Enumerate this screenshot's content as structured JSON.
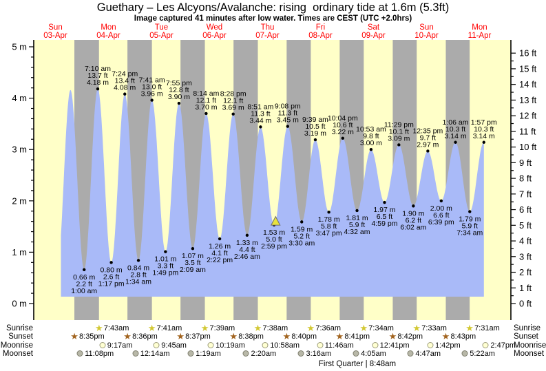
{
  "title": "Guethary – Les Alcyons/Avalanche: rising  ordinary tide at 1.6m (5.3ft)",
  "subtitle": "Image captured 41 minutes after low water. Times are CEST (UTC +2.0hrs)",
  "colors": {
    "day_band": "#ffffc8",
    "night_band": "#ababab",
    "tide_fill": "#a9baf8",
    "day_label": "#ff0000",
    "axis": "#000000",
    "dot": "#000000",
    "marker_fill": "#e8e23f",
    "marker_stroke": "#6e6e6e",
    "sunrise_star": "#d2c832",
    "sunset_star": "#a2641f",
    "moonrise_fill": "#ffffd2",
    "moonrise_border": "#9a9a7a",
    "moonset_fill": "#b8b8a8",
    "moonset_border": "#7e7e6e"
  },
  "chart_data": {
    "type": "area",
    "title": "Guethary – Les Alcyons/Avalanche: rising ordinary tide at 1.6m (5.3ft)",
    "subtitle": "Image captured 41 minutes after low water. Times are CEST (UTC +2.0hrs)",
    "days": [
      {
        "name": "Sun",
        "date": "03-Apr"
      },
      {
        "name": "Mon",
        "date": "04-Apr"
      },
      {
        "name": "Tue",
        "date": "05-Apr"
      },
      {
        "name": "Wed",
        "date": "06-Apr"
      },
      {
        "name": "Thu",
        "date": "07-Apr"
      },
      {
        "name": "Fri",
        "date": "08-Apr"
      },
      {
        "name": "Sat",
        "date": "09-Apr"
      },
      {
        "name": "Sun",
        "date": "10-Apr"
      },
      {
        "name": "Mon",
        "date": "11-Apr"
      }
    ],
    "y_axis_left": {
      "unit": "m",
      "min": 0,
      "max": 5,
      "major_step": 1,
      "minor_step": 0.2
    },
    "y_axis_right": {
      "unit": "ft",
      "min": 0,
      "max": 16,
      "major_step": 1,
      "minor_step": 0.5
    },
    "tide_events": [
      {
        "type": "low",
        "labeled": false,
        "t": 12.6,
        "m": 0.55
      },
      {
        "type": "high",
        "labeled": false,
        "t": 18.8,
        "m": 4.16
      },
      {
        "type": "low",
        "labeled": true,
        "t": 25.0,
        "m": 0.66,
        "ft": 2.2,
        "time": "1:00 am"
      },
      {
        "type": "high",
        "labeled": true,
        "t": 31.17,
        "m": 4.18,
        "ft": 13.7,
        "time": "7:10 am"
      },
      {
        "type": "low",
        "labeled": true,
        "t": 37.28,
        "m": 0.8,
        "ft": 2.6,
        "time": "1:17 pm"
      },
      {
        "type": "high",
        "labeled": true,
        "t": 43.4,
        "m": 4.08,
        "ft": 13.4,
        "time": "7:24 pm"
      },
      {
        "type": "low",
        "labeled": true,
        "t": 49.57,
        "m": 0.84,
        "ft": 2.8,
        "time": "1:34 am"
      },
      {
        "type": "high",
        "labeled": true,
        "t": 55.68,
        "m": 3.96,
        "ft": 13.0,
        "time": "7:41 am"
      },
      {
        "type": "low",
        "labeled": true,
        "t": 61.82,
        "m": 1.01,
        "ft": 3.3,
        "time": "1:49 pm"
      },
      {
        "type": "high",
        "labeled": true,
        "t": 67.92,
        "m": 3.9,
        "ft": 12.8,
        "time": "7:55 pm"
      },
      {
        "type": "low",
        "labeled": true,
        "t": 74.15,
        "m": 1.07,
        "ft": 3.5,
        "time": "2:09 am"
      },
      {
        "type": "high",
        "labeled": true,
        "t": 80.23,
        "m": 3.7,
        "ft": 12.1,
        "time": "8:14 am"
      },
      {
        "type": "low",
        "labeled": true,
        "t": 86.37,
        "m": 1.26,
        "ft": 4.1,
        "time": "2:22 pm"
      },
      {
        "type": "high",
        "labeled": true,
        "t": 92.47,
        "m": 3.69,
        "ft": 12.1,
        "time": "8:28 pm"
      },
      {
        "type": "low",
        "labeled": true,
        "t": 98.77,
        "m": 1.33,
        "ft": 4.4,
        "time": "2:46 am"
      },
      {
        "type": "high",
        "labeled": true,
        "t": 104.85,
        "m": 3.44,
        "ft": 11.3,
        "time": "8:51 am"
      },
      {
        "type": "low",
        "labeled": true,
        "t": 110.98,
        "m": 1.53,
        "ft": 5.0,
        "time": "2:59 pm",
        "current": true
      },
      {
        "type": "high",
        "labeled": true,
        "t": 117.13,
        "m": 3.45,
        "ft": 11.3,
        "time": "9:08 pm"
      },
      {
        "type": "low",
        "labeled": true,
        "t": 123.5,
        "m": 1.59,
        "ft": 5.2,
        "time": "3:30 am"
      },
      {
        "type": "high",
        "labeled": true,
        "t": 129.65,
        "m": 3.19,
        "ft": 10.5,
        "time": "9:39 am"
      },
      {
        "type": "low",
        "labeled": true,
        "t": 135.78,
        "m": 1.78,
        "ft": 5.8,
        "time": "3:47 pm"
      },
      {
        "type": "high",
        "labeled": true,
        "t": 142.07,
        "m": 3.22,
        "ft": 10.6,
        "time": "10:04 pm"
      },
      {
        "type": "low",
        "labeled": true,
        "t": 148.53,
        "m": 1.81,
        "ft": 5.9,
        "time": "4:32 am"
      },
      {
        "type": "high",
        "labeled": true,
        "t": 154.88,
        "m": 3.0,
        "ft": 9.8,
        "time": "10:53 am"
      },
      {
        "type": "low",
        "labeled": true,
        "t": 160.98,
        "m": 1.97,
        "ft": 6.5,
        "time": "4:59 pm"
      },
      {
        "type": "high",
        "labeled": true,
        "t": 167.48,
        "m": 3.09,
        "ft": 10.1,
        "time": "11:29 pm"
      },
      {
        "type": "low",
        "labeled": true,
        "t": 174.03,
        "m": 1.9,
        "ft": 6.2,
        "time": "6:02 am"
      },
      {
        "type": "high",
        "labeled": true,
        "t": 180.58,
        "m": 2.97,
        "ft": 9.7,
        "time": "12:35 pm"
      },
      {
        "type": "low",
        "labeled": true,
        "t": 186.65,
        "m": 2.0,
        "ft": 6.6,
        "time": "6:39 pm"
      },
      {
        "type": "high",
        "labeled": true,
        "t": 193.1,
        "m": 3.14,
        "ft": 10.3,
        "time": "1:06 am"
      },
      {
        "type": "low",
        "labeled": true,
        "t": 199.57,
        "m": 1.79,
        "ft": 5.9,
        "time": "7:34 am"
      },
      {
        "type": "high",
        "labeled": true,
        "t": 205.95,
        "m": 3.14,
        "ft": 10.3,
        "time": "1:57 pm"
      }
    ],
    "current_marker": {
      "t": 111.67,
      "height_m": 1.6,
      "shape": "yellow-triangle"
    }
  },
  "astro": {
    "rows": [
      {
        "key": "sunrise",
        "label": "Sunrise",
        "icon": "sunrise-star-icon",
        "events": [
          {
            "time": "7:43am",
            "t": 31.72
          },
          {
            "time": "7:41am",
            "t": 55.68
          },
          {
            "time": "7:39am",
            "t": 79.65
          },
          {
            "time": "7:38am",
            "t": 103.63
          },
          {
            "time": "7:36am",
            "t": 127.6
          },
          {
            "time": "7:34am",
            "t": 151.57
          },
          {
            "time": "7:33am",
            "t": 175.55
          },
          {
            "time": "7:31am",
            "t": 199.52
          }
        ]
      },
      {
        "key": "sunset",
        "label": "Sunset",
        "icon": "sunset-star-icon",
        "events": [
          {
            "time": "8:35pm",
            "t": 20.58
          },
          {
            "time": "8:36pm",
            "t": 44.6
          },
          {
            "time": "8:37pm",
            "t": 68.62
          },
          {
            "time": "8:38pm",
            "t": 92.63
          },
          {
            "time": "8:40pm",
            "t": 116.67
          },
          {
            "time": "8:41pm",
            "t": 140.68
          },
          {
            "time": "8:42pm",
            "t": 164.7
          },
          {
            "time": "8:43pm",
            "t": 188.72
          }
        ]
      },
      {
        "key": "moonrise",
        "label": "Moonrise",
        "icon": "moonrise-icon",
        "events": [
          {
            "time": "9:17am",
            "t": 33.28
          },
          {
            "time": "9:45am",
            "t": 57.75
          },
          {
            "time": "10:19am",
            "t": 82.32
          },
          {
            "time": "10:58am",
            "t": 106.97
          },
          {
            "time": "11:46am",
            "t": 131.77
          },
          {
            "time": "12:41pm",
            "t": 156.68
          },
          {
            "time": "1:42pm",
            "t": 181.7
          },
          {
            "time": "2:47pm",
            "t": 206.78
          }
        ]
      },
      {
        "key": "moonset",
        "label": "Moonset",
        "icon": "moonset-icon",
        "events": [
          {
            "time": "11:08pm",
            "t": 23.13
          },
          {
            "time": "12:14am",
            "t": 48.23
          },
          {
            "time": "1:19am",
            "t": 73.32
          },
          {
            "time": "2:20am",
            "t": 98.33
          },
          {
            "time": "3:16am",
            "t": 123.27
          },
          {
            "time": "4:05am",
            "t": 148.08
          },
          {
            "time": "4:47am",
            "t": 172.78
          },
          {
            "time": "5:22am",
            "t": 197.37
          }
        ]
      }
    ],
    "moon_phase": "First Quarter | 8:48am"
  }
}
